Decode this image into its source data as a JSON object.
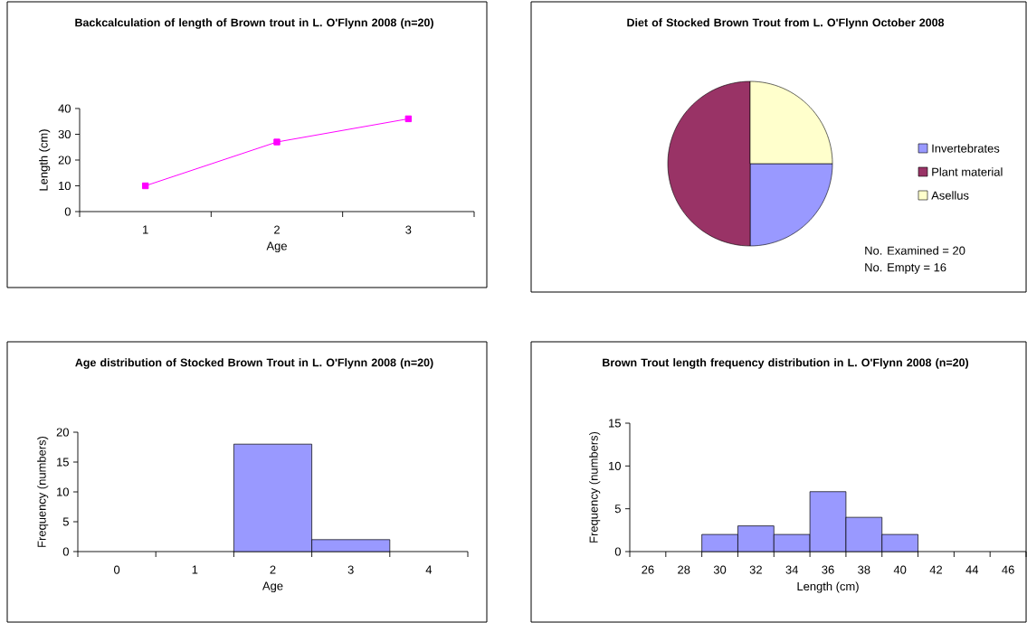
{
  "chart_data": [
    {
      "type": "line",
      "title": "Backcalculation of length of Brown trout in L. O'Flynn 2008 (n=20)",
      "xlabel": "Age",
      "ylabel": "Length (cm)",
      "categories": [
        "1",
        "2",
        "3"
      ],
      "series": [
        {
          "color": "#ff00ff",
          "values": [
            10,
            27,
            36
          ]
        }
      ],
      "marker": "square",
      "ylim": [
        0,
        40
      ],
      "yticks": [
        0,
        10,
        20,
        30,
        40
      ]
    },
    {
      "type": "pie",
      "title": "Diet of Stocked Brown Trout from L. O'Flynn October 2008",
      "categories": [
        "Invertebrates",
        "Plant material",
        "Asellus"
      ],
      "values": [
        25,
        50,
        25
      ],
      "colors": [
        "#9999ff",
        "#993366",
        "#ffffcc"
      ],
      "legend": "right",
      "annotations": [
        "No. Examined = 20",
        "No. Empty = 16"
      ]
    },
    {
      "type": "bar",
      "title": "Age distribution of Stocked Brown Trout in L. O'Flynn 2008 (n=20)",
      "xlabel": "Age",
      "ylabel": "Frequency (numbers)",
      "categories": [
        "0",
        "1",
        "2",
        "3",
        "4"
      ],
      "values": [
        0,
        0,
        18,
        2,
        0
      ],
      "color": "#9999ff",
      "ylim": [
        0,
        20
      ],
      "yticks": [
        0,
        5,
        10,
        15,
        20
      ]
    },
    {
      "type": "bar",
      "title": "Brown Trout length frequency distribution in L. O'Flynn 2008 (n=20)",
      "xlabel": "Length (cm)",
      "ylabel": "Frequency (numbers)",
      "categories": [
        "26",
        "28",
        "30",
        "32",
        "34",
        "36",
        "38",
        "40",
        "42",
        "44",
        "46"
      ],
      "values": [
        0,
        0,
        2,
        3,
        2,
        7,
        4,
        2,
        0,
        0,
        0
      ],
      "color": "#9999ff",
      "ylim": [
        0,
        15
      ],
      "yticks": [
        0,
        5,
        10,
        15
      ]
    }
  ]
}
